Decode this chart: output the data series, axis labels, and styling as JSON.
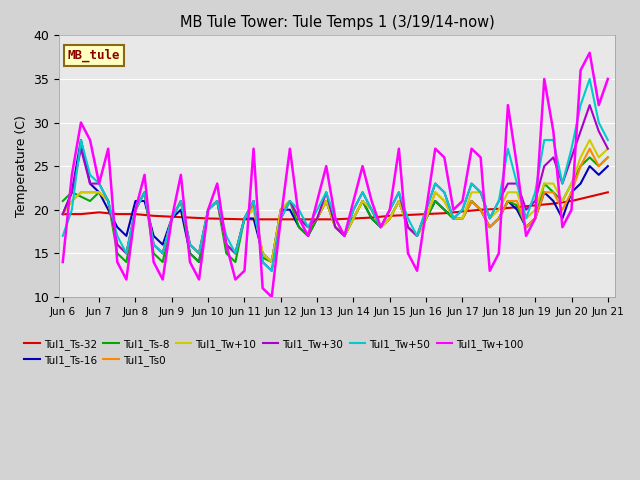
{
  "title": "MB Tule Tower: Tule Temps 1 (3/19/14-now)",
  "ylabel": "Temperature (C)",
  "ylim": [
    10,
    40
  ],
  "xlim": [
    -0.1,
    15.2
  ],
  "background_color": "#d3d3d3",
  "plot_bg_color": "#e8e8e8",
  "legend_box_label": "MB_tule",
  "legend_box_color": "#ffffc0",
  "legend_box_edge": "#8b6914",
  "legend_box_text": "#8b0000",
  "xtick_positions": [
    0,
    1,
    2,
    3,
    4,
    5,
    6,
    7,
    8,
    9,
    10,
    11,
    12,
    13,
    14,
    15
  ],
  "xtick_labels": [
    "Jun 6",
    "Jun 7",
    "Jun 8",
    "Jun 9",
    "Jun 10",
    "Jun 11",
    "Jun 12",
    "Jun 13",
    "Jun 14",
    "Jun 15",
    "Jun 16",
    "Jun 17",
    "Jun 18",
    "Jun 19",
    "Jun 20",
    "Jun 21"
  ],
  "ytick_positions": [
    10,
    15,
    20,
    25,
    30,
    35,
    40
  ],
  "legend_order": [
    "Tul1_Ts-32",
    "Tul1_Ts-16",
    "Tul1_Ts-8",
    "Tul1_Ts0",
    "Tul1_Tw+10",
    "Tul1_Tw+30",
    "Tul1_Tw+50",
    "Tul1_Tw+100"
  ],
  "series": {
    "Tul1_Ts-32": {
      "color": "#dd0000",
      "lw": 1.5,
      "x": [
        0,
        0.5,
        1,
        1.5,
        2,
        2.5,
        3,
        3.5,
        4,
        4.5,
        5,
        5.5,
        6,
        6.5,
        7,
        7.5,
        8,
        8.5,
        9,
        9.5,
        10,
        10.5,
        11,
        11.5,
        12,
        12.5,
        13,
        13.5,
        14,
        14.5,
        15
      ],
      "y": [
        19.5,
        19.5,
        19.7,
        19.5,
        19.5,
        19.3,
        19.2,
        19.1,
        19.0,
        18.95,
        18.9,
        18.9,
        18.9,
        18.9,
        18.9,
        18.9,
        19.0,
        19.1,
        19.3,
        19.4,
        19.5,
        19.6,
        19.8,
        20.0,
        20.1,
        20.3,
        20.5,
        20.7,
        21.0,
        21.5,
        22.0
      ]
    },
    "Tul1_Ts-16": {
      "color": "#0000bb",
      "lw": 1.5,
      "x": [
        0,
        0.25,
        0.5,
        0.75,
        1,
        1.25,
        1.5,
        1.75,
        2,
        2.25,
        2.5,
        2.75,
        3,
        3.25,
        3.5,
        3.75,
        4,
        4.25,
        4.5,
        4.75,
        5,
        5.25,
        5.5,
        5.75,
        6,
        6.25,
        6.5,
        6.75,
        7,
        7.25,
        7.5,
        7.75,
        8,
        8.25,
        8.5,
        8.75,
        9,
        9.25,
        9.5,
        9.75,
        10,
        10.25,
        10.5,
        10.75,
        11,
        11.25,
        11.5,
        11.75,
        12,
        12.25,
        12.5,
        12.75,
        13,
        13.25,
        13.5,
        13.75,
        14,
        14.25,
        14.5,
        14.75,
        15
      ],
      "y": [
        19.5,
        22,
        28,
        23,
        22,
        20,
        18,
        17,
        21,
        21,
        17,
        16,
        19,
        20,
        15,
        14,
        20,
        21,
        16,
        15,
        19,
        19,
        15,
        14,
        20,
        20,
        18,
        17,
        19,
        21,
        18,
        17,
        19,
        21,
        19,
        18,
        19,
        21,
        18,
        17,
        19,
        21,
        20,
        19,
        19,
        21,
        20,
        18,
        19,
        21,
        20,
        18,
        19,
        22,
        21,
        19,
        22,
        23,
        25,
        24,
        25
      ]
    },
    "Tul1_Ts-8": {
      "color": "#00aa00",
      "lw": 1.5,
      "x": [
        0,
        0.25,
        0.5,
        0.75,
        1,
        1.25,
        1.5,
        1.75,
        2,
        2.25,
        2.5,
        2.75,
        3,
        3.25,
        3.5,
        3.75,
        4,
        4.25,
        4.5,
        4.75,
        5,
        5.25,
        5.5,
        5.75,
        6,
        6.25,
        6.5,
        6.75,
        7,
        7.25,
        7.5,
        7.75,
        8,
        8.25,
        8.5,
        8.75,
        9,
        9.25,
        9.5,
        9.75,
        10,
        10.25,
        10.5,
        10.75,
        11,
        11.25,
        11.5,
        11.75,
        12,
        12.25,
        12.5,
        12.75,
        13,
        13.25,
        13.5,
        13.75,
        14,
        14.25,
        14.5,
        14.75,
        15
      ],
      "y": [
        21,
        22,
        21.5,
        21,
        22,
        21,
        15,
        14,
        20,
        22,
        15,
        14,
        19,
        21,
        15,
        14,
        20,
        21,
        15,
        14,
        19,
        21,
        14.5,
        14,
        20,
        21,
        18,
        17,
        19,
        21,
        18,
        17,
        19,
        21,
        19,
        18,
        19,
        21,
        18,
        17,
        19,
        21,
        20,
        19,
        19,
        21,
        20,
        18,
        19,
        21,
        20.5,
        18,
        19,
        23,
        22,
        21,
        23,
        25,
        26,
        25,
        26
      ]
    },
    "Tul1_Ts0": {
      "color": "#ff8800",
      "lw": 1.5,
      "x": [
        0,
        0.25,
        0.5,
        0.75,
        1,
        1.25,
        1.5,
        1.75,
        2,
        2.25,
        2.5,
        2.75,
        3,
        3.25,
        3.5,
        3.75,
        4,
        4.25,
        4.5,
        4.75,
        5,
        5.25,
        5.5,
        5.75,
        6,
        6.25,
        6.5,
        6.75,
        7,
        7.25,
        7.5,
        7.75,
        8,
        8.25,
        8.5,
        8.75,
        9,
        9.25,
        9.5,
        9.75,
        10,
        10.25,
        10.5,
        10.75,
        11,
        11.25,
        11.5,
        11.75,
        12,
        12.25,
        12.5,
        12.75,
        13,
        13.25,
        13.5,
        13.75,
        14,
        14.25,
        14.5,
        14.75,
        15
      ],
      "y": [
        19.5,
        21,
        22,
        22,
        22,
        21,
        16,
        15,
        20,
        22,
        16,
        15,
        19,
        21,
        16,
        15,
        20,
        21,
        16,
        15,
        19,
        20.5,
        15,
        14,
        20,
        21,
        19,
        18,
        19,
        21,
        18,
        17,
        19,
        21,
        20,
        18,
        19,
        21,
        18,
        17,
        19,
        22,
        21,
        19,
        19,
        21,
        20,
        18,
        19,
        21,
        21,
        18,
        19,
        22,
        22,
        20,
        22,
        25,
        27,
        25,
        26
      ]
    },
    "Tul1_Tw+10": {
      "color": "#cccc00",
      "lw": 1.5,
      "x": [
        0,
        0.25,
        0.5,
        0.75,
        1,
        1.25,
        1.5,
        1.75,
        2,
        2.25,
        2.5,
        2.75,
        3,
        3.25,
        3.5,
        3.75,
        4,
        4.25,
        4.5,
        4.75,
        5,
        5.25,
        5.5,
        5.75,
        6,
        6.25,
        6.5,
        6.75,
        7,
        7.25,
        7.5,
        7.75,
        8,
        8.25,
        8.5,
        8.75,
        9,
        9.25,
        9.5,
        9.75,
        10,
        10.25,
        10.5,
        10.75,
        11,
        11.25,
        11.5,
        11.75,
        12,
        12.25,
        12.5,
        12.75,
        13,
        13.25,
        13.5,
        13.75,
        14,
        14.25,
        14.5,
        14.75,
        15
      ],
      "y": [
        19.5,
        21,
        22,
        22,
        22,
        21,
        16,
        15,
        20,
        22,
        16,
        15,
        19,
        21,
        16,
        15,
        20,
        21,
        16,
        15,
        19,
        20,
        15,
        14,
        20,
        21,
        19,
        18,
        19,
        21,
        18,
        17,
        19,
        21,
        20,
        18,
        19,
        21,
        18,
        17,
        19,
        22,
        21,
        19,
        19,
        22,
        22,
        19,
        20,
        22,
        22,
        19,
        20,
        23,
        23,
        21,
        23,
        26,
        28,
        26,
        27
      ]
    },
    "Tul1_Tw+30": {
      "color": "#aa00cc",
      "lw": 1.5,
      "x": [
        0,
        0.25,
        0.5,
        0.75,
        1,
        1.25,
        1.5,
        1.75,
        2,
        2.25,
        2.5,
        2.75,
        3,
        3.25,
        3.5,
        3.75,
        4,
        4.25,
        4.5,
        4.75,
        5,
        5.25,
        5.5,
        5.75,
        6,
        6.25,
        6.5,
        6.75,
        7,
        7.25,
        7.5,
        7.75,
        8,
        8.25,
        8.5,
        8.75,
        9,
        9.25,
        9.5,
        9.75,
        10,
        10.25,
        10.5,
        10.75,
        11,
        11.25,
        11.5,
        11.75,
        12,
        12.25,
        12.5,
        12.75,
        13,
        13.25,
        13.5,
        13.75,
        14,
        14.25,
        14.5,
        14.75,
        15
      ],
      "y": [
        19.5,
        22,
        27,
        23,
        23,
        21,
        16,
        15,
        20,
        22,
        16,
        15,
        19,
        21,
        16,
        15,
        20,
        21,
        16,
        15,
        19,
        21,
        14,
        13,
        19,
        21,
        19,
        18,
        19,
        22,
        18,
        17,
        20,
        22,
        20,
        18,
        20,
        22,
        18,
        17,
        20,
        23,
        22,
        19,
        20,
        23,
        22,
        19,
        21,
        23,
        23,
        20,
        21,
        25,
        26,
        23,
        26,
        29,
        32,
        29,
        27
      ]
    },
    "Tul1_Tw+50": {
      "color": "#00cccc",
      "lw": 1.5,
      "x": [
        0,
        0.25,
        0.5,
        0.75,
        1,
        1.25,
        1.5,
        1.75,
        2,
        2.25,
        2.5,
        2.75,
        3,
        3.25,
        3.5,
        3.75,
        4,
        4.25,
        4.5,
        4.75,
        5,
        5.25,
        5.5,
        5.75,
        6,
        6.25,
        6.5,
        6.75,
        7,
        7.25,
        7.5,
        7.75,
        8,
        8.25,
        8.5,
        8.75,
        9,
        9.25,
        9.5,
        9.75,
        10,
        10.25,
        10.5,
        10.75,
        11,
        11.25,
        11.5,
        11.75,
        12,
        12.25,
        12.5,
        12.75,
        13,
        13.25,
        13.5,
        13.75,
        14,
        14.25,
        14.5,
        14.75,
        15
      ],
      "y": [
        17,
        20,
        28,
        24,
        23,
        21,
        17,
        15,
        20,
        22,
        16,
        15,
        19,
        21,
        16,
        15,
        20,
        21,
        17,
        15,
        19,
        21,
        14,
        13,
        19,
        21,
        20,
        18,
        20,
        22,
        19,
        17,
        20,
        22,
        20,
        18,
        20,
        22,
        19,
        17,
        20,
        23,
        22,
        19,
        20,
        23,
        22,
        19,
        21,
        27,
        23,
        19,
        22,
        28,
        28,
        23,
        27,
        32,
        35,
        30,
        28
      ]
    },
    "Tul1_Tw+100": {
      "color": "#ff00ff",
      "lw": 1.8,
      "x": [
        0,
        0.25,
        0.5,
        0.75,
        1,
        1.25,
        1.5,
        1.75,
        2,
        2.25,
        2.5,
        2.75,
        3,
        3.25,
        3.5,
        3.75,
        4,
        4.25,
        4.5,
        4.75,
        5,
        5.25,
        5.5,
        5.75,
        6,
        6.25,
        6.5,
        6.75,
        7,
        7.25,
        7.5,
        7.75,
        8,
        8.25,
        8.5,
        8.75,
        9,
        9.25,
        9.5,
        9.75,
        10,
        10.25,
        10.5,
        10.75,
        11,
        11.25,
        11.5,
        11.75,
        12,
        12.25,
        12.5,
        12.75,
        13,
        13.25,
        13.5,
        13.75,
        14,
        14.25,
        14.5,
        14.75,
        15
      ],
      "y": [
        14,
        24,
        30,
        28,
        23,
        27,
        14,
        12,
        20,
        24,
        14,
        12,
        19,
        24,
        14,
        12,
        20,
        23,
        16,
        12,
        13,
        27,
        11,
        10,
        19,
        27,
        19,
        17,
        21,
        25,
        19,
        17,
        21,
        25,
        21,
        18,
        20,
        27,
        15,
        13,
        20,
        27,
        26,
        20,
        21,
        27,
        26,
        13,
        15,
        32,
        25,
        17,
        19,
        35,
        29,
        18,
        20,
        36,
        38,
        32,
        35
      ]
    }
  }
}
